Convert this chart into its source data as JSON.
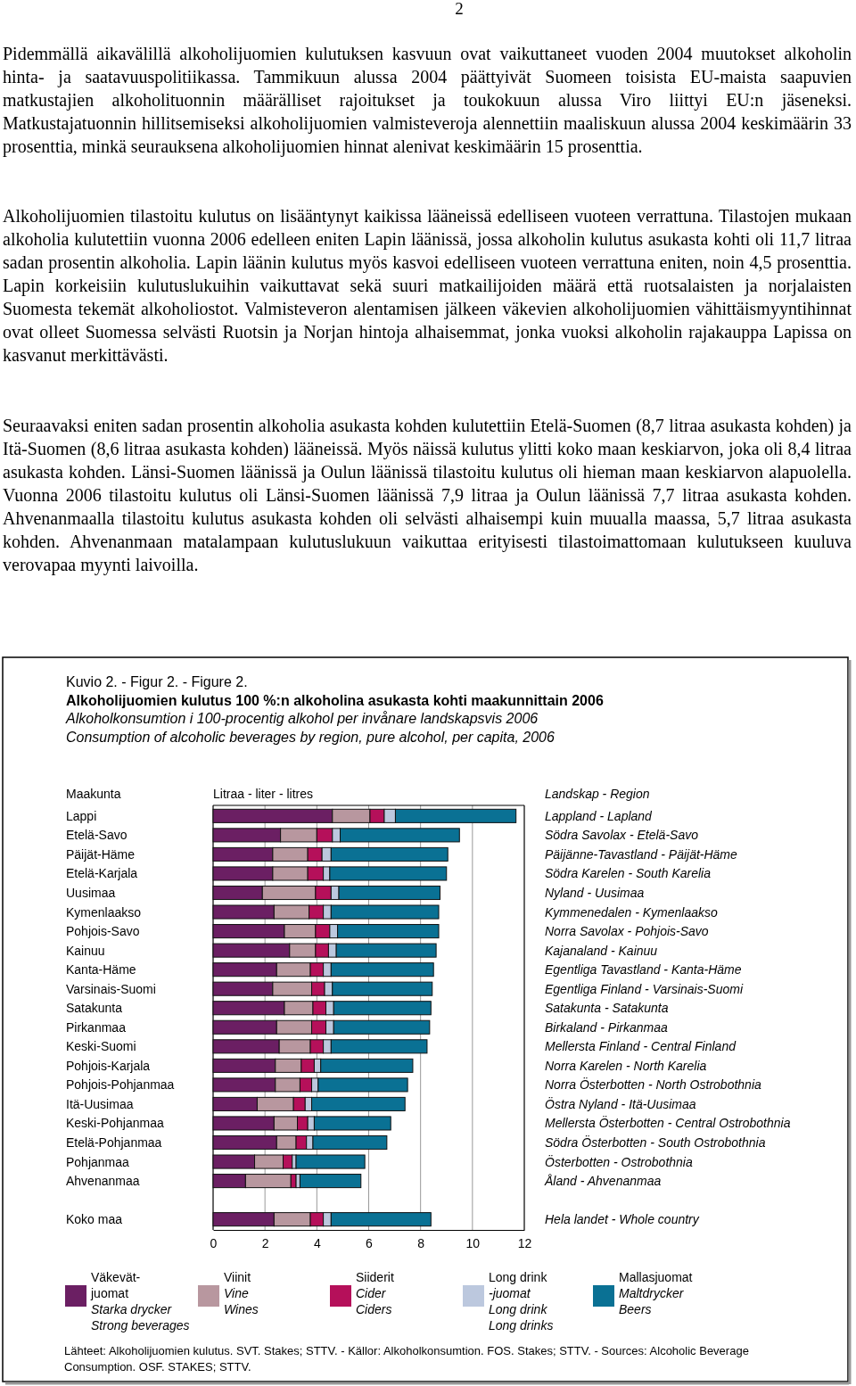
{
  "chart_data": {
    "type": "bar",
    "orientation": "horizontal",
    "stacked": true,
    "title": "Alkoholijuomien kulutus 100 %:n alkoholina asukasta kohti maakunnittain 2006",
    "subtitle": "Alkoholkonsumtion i 100-procentig alkohol per invånare landskapsvis 2006\nConsumption of alcoholic beverages by region, pure alcohol, per capita, 2006",
    "xlabel": "Litraa - liter - litres",
    "ylabel": "Maakunta",
    "categories": [
      "Lappi",
      "Etelä-Savo",
      "Päijät-Häme",
      "Etelä-Karjala",
      "Uusimaa",
      "Kymenlaakso",
      "Pohjois-Savo",
      "Kainuu",
      "Kanta-Häme",
      "Varsinais-Suomi",
      "Satakunta",
      "Pirkanmaa",
      "Keski-Suomi",
      "Pohjois-Karjala",
      "Pohjois-Pohjanmaa",
      "Itä-Uusimaa",
      "Keski-Pohjanmaa",
      "Etelä-Pohjanmaa",
      "Pohjanmaa",
      "Ahvenanmaa",
      null,
      "Koko maa"
    ],
    "series": [
      {
        "name": "Väkevät-\njuomat\nStarka drycker\nStrong beverages",
        "color": "#6b1f63",
        "values": [
          4.6,
          2.6,
          2.3,
          2.3,
          1.9,
          2.35,
          2.75,
          2.95,
          2.45,
          2.3,
          2.75,
          2.45,
          2.55,
          2.4,
          2.4,
          1.7,
          2.35,
          2.45,
          1.6,
          1.25,
          null,
          2.35
        ]
      },
      {
        "name": "Viinit\nVine\nWines",
        "color": "#b8979f",
        "values": [
          1.45,
          1.4,
          1.35,
          1.35,
          2.05,
          1.35,
          1.2,
          1.0,
          1.3,
          1.5,
          1.1,
          1.35,
          1.2,
          1.0,
          0.95,
          1.4,
          0.9,
          0.75,
          1.1,
          1.75,
          null,
          1.4
        ]
      },
      {
        "name": "Siiderit\nCider\nCiders",
        "color": "#b5105a",
        "values": [
          0.55,
          0.6,
          0.55,
          0.6,
          0.6,
          0.55,
          0.55,
          0.5,
          0.5,
          0.5,
          0.5,
          0.55,
          0.5,
          0.5,
          0.45,
          0.45,
          0.4,
          0.4,
          0.35,
          0.2,
          null,
          0.5
        ]
      },
      {
        "name": "Long drink\n-juomat\nLong drink\nLong drinks",
        "color": "#bcc8de",
        "values": [
          0.43,
          0.3,
          0.35,
          0.25,
          0.3,
          0.3,
          0.3,
          0.3,
          0.3,
          0.3,
          0.3,
          0.3,
          0.3,
          0.25,
          0.25,
          0.25,
          0.25,
          0.25,
          0.15,
          0.15,
          null,
          0.3
        ]
      },
      {
        "name": "Mallasjuomat\nMaltdrycker\nBeers",
        "color": "#0a7194",
        "values": [
          4.65,
          4.6,
          4.5,
          4.5,
          3.9,
          4.15,
          3.9,
          3.85,
          3.95,
          3.85,
          3.75,
          3.7,
          3.7,
          3.55,
          3.45,
          3.6,
          2.95,
          2.85,
          2.65,
          2.35,
          null,
          3.85
        ]
      }
    ],
    "xlim": [
      0,
      12
    ],
    "xticks": [
      0,
      2,
      4,
      6,
      8,
      10,
      12
    ],
    "grid": "x",
    "legend": "bottom",
    "annotations": [
      "2",
      "Pidemmällä aikavälillä alkoholijuomien kulutuksen kasvuun ovat vaikuttaneet vuoden 2004 muutokset alkoholin hinta- ja saatavuuspolitiikassa. Tammikuun alussa 2004 päättyivät Suomeen toisista EU-maista saapuvien matkustajien alkoholituonnin määrälliset rajoitukset ja toukokuun alussa Viro liittyi EU:n jäseneksi. Matkustajatuonnin hillitsemiseksi alkoholijuomien valmisteveroja alennettiin maaliskuun alussa 2004 keskimäärin 33 prosenttia, minkä seurauksena alkoholijuomien hinnat alenivat keskimäärin 15 prosenttia.",
      "Alkoholijuomien tilastoitu kulutus on lisääntynyt kaikissa lääneissä edelliseen vuoteen verrattuna. Tilastojen mukaan alkoholia kulutettiin vuonna 2006 edelleen eniten Lapin läänissä, jossa alkoholin kulutus asukasta kohti oli 11,7 litraa sadan prosentin alkoholia. Lapin läänin kulutus myös kasvoi edelliseen vuoteen verrattuna eniten, noin 4,5 prosenttia. Lapin korkeisiin kulutuslukuihin vaikuttavat sekä suuri matkailijoiden määrä että ruotsalaisten ja norjalaisten Suomesta tekemät alkoholiostot. Valmisteveron alentamisen jälkeen väkevien alkoholijuomien vähittäismyyntihinnat ovat olleet Suomessa selvästi Ruotsin ja Norjan hintoja alhaisemmat, jonka vuoksi alkoholin rajakauppa Lapissa on kasvanut merkittävästi.",
      "Seuraavaksi eniten sadan prosentin alkoholia asukasta kohden kulutettiin Etelä-Suomen (8,7 litraa asukasta kohden) ja Itä-Suomen (8,6 litraa asukasta kohden) lääneissä. Myös näissä kulutus ylitti koko maan keskiarvon, joka oli 8,4 litraa asukasta kohden. Länsi-Suomen läänissä ja Oulun läänissä tilastoitu kulutus oli hieman maan keskiarvon alapuolella. Vuonna 2006 tilastoitu kulutus oli Länsi-Suomen läänissä 7,9 litraa ja Oulun läänissä 7,7 litraa asukasta kohden. Ahvenanmaalla tilastoitu kulutus asukasta kohden oli selvästi alhaisempi kuin muualla maassa, 5,7 litraa asukasta kohden. Ahvenanmaan matalampaan kulutuslukuun vaikuttaa erityisesti tilastoimattomaan kulutukseen kuuluva verovapaa myynti laivoilla.",
      "Kuvio 2. - Figur 2. - Figure 2.",
      "Lähteet: Alkoholijuomien kulutus. SVT. Stakes; STTV. - Källor: Alkoholkonsumtion. FOS. Stakes; STTV. - Sources: Alcoholic Beverage Consumption. OSF. STAKES; STTV.",
      "Landskap - Region",
      "Lappland - Lapland",
      "Södra Savolax - Etelä-Savo",
      "Päijänne-Tavastland - Päijät-Häme",
      "Södra Karelen - South Karelia",
      "Nyland - Uusimaa",
      "Kymmenedalen - Kymenlaakso",
      "Norra Savolax - Pohjois-Savo",
      "Kajanaland - Kainuu",
      "Egentliga Tavastland - Kanta-Häme",
      "Egentliga Finland - Varsinais-Suomi",
      "Satakunta - Satakunta",
      "Birkaland - Pirkanmaa",
      "Mellersta Finland - Central Finland",
      "Norra Karelen - North Karelia",
      "Norra Österbotten - North Ostrobothnia",
      "Östra Nyland - Itä-Uusimaa",
      "Mellersta Österbotten - Central Ostrobothnia",
      "Södra Österbotten - South Ostrobothnia",
      "Österbotten - Ostrobothnia",
      "Åland - Ahvenanmaa",
      "Hela landet - Whole country"
    ]
  }
}
